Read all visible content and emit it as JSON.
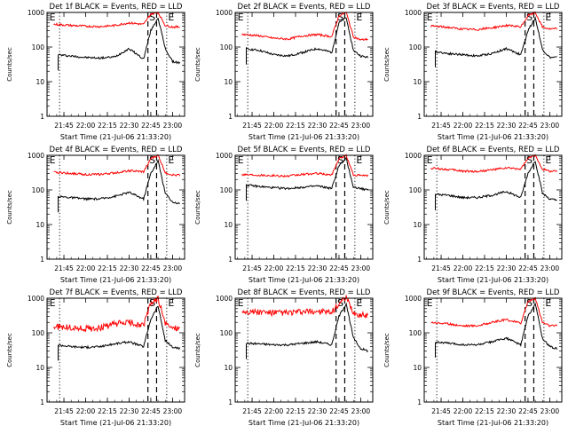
{
  "page": {
    "time_labels": [
      "21:45",
      "22:00",
      "22:15",
      "22:30",
      "22:45",
      "23:00"
    ],
    "y_tick_labels": [
      "1",
      "10",
      "100",
      "1000"
    ],
    "ylabel": "Counts/sec",
    "xlabel": "Start Time (21-Jul-06 21:33:20)",
    "interval_markers": [
      "E",
      "S",
      "E"
    ],
    "colors": {
      "events": "#000000",
      "lld": "#ff0000",
      "axes": "#000000"
    }
  },
  "chart_data": [
    {
      "type": "line",
      "title": "Det 1f BLACK = Events, RED = LLD",
      "ylabel": "Counts/sec",
      "xlabel": "Start Time (21-Jul-06 21:33:20)",
      "yscale": "log",
      "ylim": [
        1,
        1000
      ],
      "x": [
        "21:40",
        "21:50",
        "22:00",
        "22:10",
        "22:20",
        "22:30",
        "22:40",
        "22:45",
        "22:50",
        "22:55",
        "23:00",
        "23:05"
      ],
      "series": [
        {
          "name": "Events",
          "values": [
            60,
            55,
            50,
            48,
            52,
            90,
            45,
            300,
            700,
            90,
            38,
            35
          ]
        },
        {
          "name": "LLD",
          "values": [
            450,
            420,
            400,
            390,
            420,
            500,
            450,
            900,
            1000,
            420,
            380,
            380
          ]
        }
      ]
    },
    {
      "type": "line",
      "title": "Det 2f BLACK = Events, RED = LLD",
      "ylabel": "Counts/sec",
      "xlabel": "Start Time (21-Jul-06 21:33:20)",
      "yscale": "log",
      "ylim": [
        1,
        1000
      ],
      "x": [
        "21:40",
        "21:50",
        "22:00",
        "22:10",
        "22:20",
        "22:30",
        "22:40",
        "22:45",
        "22:50",
        "22:55",
        "23:00",
        "23:05"
      ],
      "series": [
        {
          "name": "Events",
          "values": [
            90,
            80,
            60,
            55,
            70,
            90,
            70,
            500,
            700,
            80,
            55,
            50
          ]
        },
        {
          "name": "LLD",
          "values": [
            230,
            210,
            180,
            170,
            210,
            230,
            200,
            800,
            1000,
            200,
            160,
            170
          ]
        }
      ]
    },
    {
      "type": "line",
      "title": "Det 3f BLACK = Events, RED = LLD",
      "ylabel": "Counts/sec",
      "xlabel": "Start Time (21-Jul-06 21:33:20)",
      "yscale": "log",
      "ylim": [
        1,
        1000
      ],
      "x": [
        "21:40",
        "21:50",
        "22:00",
        "22:10",
        "22:20",
        "22:30",
        "22:40",
        "22:45",
        "22:50",
        "22:55",
        "23:00",
        "23:05"
      ],
      "series": [
        {
          "name": "Events",
          "values": [
            75,
            65,
            60,
            55,
            65,
            90,
            60,
            300,
            700,
            85,
            50,
            50
          ]
        },
        {
          "name": "LLD",
          "values": [
            400,
            370,
            330,
            320,
            360,
            420,
            380,
            800,
            1000,
            380,
            330,
            340
          ]
        }
      ]
    },
    {
      "type": "line",
      "title": "Det 4f BLACK = Events, RED = LLD",
      "ylabel": "Counts/sec",
      "xlabel": "Start Time (21-Jul-06 21:33:20)",
      "yscale": "log",
      "ylim": [
        1,
        1000
      ],
      "x": [
        "21:40",
        "21:50",
        "22:00",
        "22:10",
        "22:20",
        "22:30",
        "22:40",
        "22:45",
        "22:50",
        "22:55",
        "23:00",
        "23:05"
      ],
      "series": [
        {
          "name": "Events",
          "values": [
            65,
            60,
            55,
            55,
            65,
            85,
            55,
            300,
            700,
            80,
            45,
            40
          ]
        },
        {
          "name": "LLD",
          "values": [
            320,
            300,
            280,
            280,
            310,
            360,
            330,
            800,
            1000,
            320,
            270,
            270
          ]
        }
      ]
    },
    {
      "type": "line",
      "title": "Det 5f BLACK = Events, RED = LLD",
      "ylabel": "Counts/sec",
      "xlabel": "Start Time (21-Jul-06 21:33:20)",
      "yscale": "log",
      "ylim": [
        1,
        1000
      ],
      "x": [
        "21:40",
        "21:50",
        "22:00",
        "22:10",
        "22:20",
        "22:30",
        "22:40",
        "22:45",
        "22:50",
        "22:55",
        "23:00",
        "23:05"
      ],
      "series": [
        {
          "name": "Events",
          "values": [
            140,
            125,
            115,
            110,
            120,
            130,
            110,
            500,
            800,
            120,
            110,
            100
          ]
        },
        {
          "name": "LLD",
          "values": [
            280,
            270,
            260,
            250,
            280,
            300,
            270,
            800,
            1000,
            270,
            260,
            260
          ]
        }
      ]
    },
    {
      "type": "line",
      "title": "Det 6f BLACK = Events, RED = LLD",
      "ylabel": "Counts/sec",
      "xlabel": "Start Time (21-Jul-06 21:33:20)",
      "yscale": "log",
      "ylim": [
        1,
        1000
      ],
      "x": [
        "21:40",
        "21:50",
        "22:00",
        "22:10",
        "22:20",
        "22:30",
        "22:40",
        "22:45",
        "22:50",
        "22:55",
        "23:00",
        "23:05"
      ],
      "series": [
        {
          "name": "Events",
          "values": [
            75,
            70,
            60,
            60,
            70,
            90,
            60,
            300,
            700,
            80,
            55,
            50
          ]
        },
        {
          "name": "LLD",
          "values": [
            420,
            390,
            350,
            340,
            380,
            430,
            400,
            800,
            1000,
            400,
            350,
            350
          ]
        }
      ]
    },
    {
      "type": "line",
      "title": "Det 7f BLACK = Events, RED = LLD",
      "ylabel": "Counts/sec",
      "xlabel": "Start Time (21-Jul-06 21:33:20)",
      "yscale": "log",
      "ylim": [
        1,
        1000
      ],
      "x": [
        "21:40",
        "21:50",
        "22:00",
        "22:10",
        "22:20",
        "22:30",
        "22:40",
        "22:45",
        "22:50",
        "22:55",
        "23:00",
        "23:05"
      ],
      "series": [
        {
          "name": "Events",
          "values": [
            45,
            40,
            38,
            40,
            48,
            55,
            40,
            250,
            600,
            60,
            38,
            35
          ]
        },
        {
          "name": "LLD",
          "values": [
            150,
            140,
            130,
            140,
            180,
            200,
            160,
            700,
            1000,
            180,
            140,
            140
          ]
        }
      ]
    },
    {
      "type": "line",
      "title": "Det 8f BLACK = Events, RED = LLD",
      "ylabel": "Counts/sec",
      "xlabel": "Start Time (21-Jul-06 21:33:20)",
      "yscale": "log",
      "ylim": [
        1,
        1000
      ],
      "x": [
        "21:40",
        "21:50",
        "22:00",
        "22:10",
        "22:20",
        "22:30",
        "22:40",
        "22:45",
        "22:50",
        "22:55",
        "23:00",
        "23:05"
      ],
      "series": [
        {
          "name": "Events",
          "values": [
            50,
            48,
            45,
            45,
            50,
            55,
            45,
            300,
            700,
            70,
            35,
            30
          ]
        },
        {
          "name": "LLD",
          "values": [
            420,
            400,
            380,
            380,
            400,
            420,
            380,
            700,
            1000,
            380,
            320,
            330
          ]
        }
      ]
    },
    {
      "type": "line",
      "title": "Det 9f BLACK = Events, RED = LLD",
      "ylabel": "Counts/sec",
      "xlabel": "Start Time (21-Jul-06 21:33:20)",
      "yscale": "log",
      "ylim": [
        1,
        1000
      ],
      "x": [
        "21:40",
        "21:50",
        "22:00",
        "22:10",
        "22:20",
        "22:30",
        "22:40",
        "22:45",
        "22:50",
        "22:55",
        "23:00",
        "23:05"
      ],
      "series": [
        {
          "name": "Events",
          "values": [
            55,
            50,
            45,
            45,
            55,
            70,
            45,
            300,
            700,
            70,
            40,
            35
          ]
        },
        {
          "name": "LLD",
          "values": [
            200,
            180,
            160,
            160,
            200,
            240,
            190,
            800,
            1000,
            200,
            160,
            160
          ]
        }
      ]
    }
  ]
}
